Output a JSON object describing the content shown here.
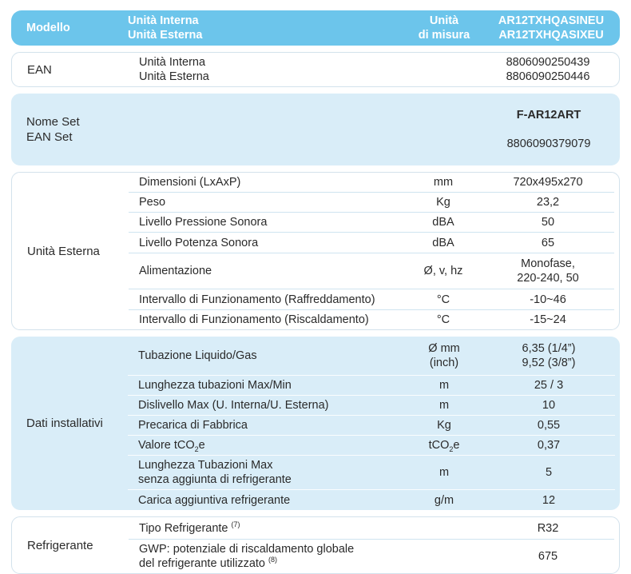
{
  "colors": {
    "header_bg": "#6cc5eb",
    "section_bg": "#d9edf8",
    "header_text": "#ffffff",
    "body_text": "#2a2a2a",
    "divider": "#cfe4f0",
    "box_border": "#d3e2ec"
  },
  "header": {
    "model_label": "Modello",
    "unit_lines": "Unità Interna\nUnità Esterna",
    "measure_lines": "Unità\ndi misura",
    "model_codes": "AR12TXHQASINEU\nAR12TXHQASIXEU"
  },
  "ean": {
    "label": "EAN",
    "param": "Unità Interna\nUnità Esterna",
    "value": "8806090250439\n8806090250446"
  },
  "set": {
    "label": "Nome Set\nEAN Set",
    "name_value": "F-AR12ART",
    "ean_value": "8806090379079"
  },
  "outdoor": {
    "label": "Unità Esterna",
    "rows": [
      {
        "param": "Dimensioni (LxAxP)",
        "unit": "mm",
        "value": "720x495x270"
      },
      {
        "param": "Peso",
        "unit": "Kg",
        "value": "23,2"
      },
      {
        "param": "Livello Pressione Sonora",
        "unit": "dBA",
        "value": "50"
      },
      {
        "param": "Livello Potenza Sonora",
        "unit": "dBA",
        "value": "65"
      },
      {
        "param": "Alimentazione",
        "unit": "Ø, v, hz",
        "value": "Monofase,\n220-240, 50"
      },
      {
        "param": "Intervallo di Funzionamento (Raffreddamento)",
        "unit": "°C",
        "value": "-10~46"
      },
      {
        "param": "Intervallo di Funzionamento (Riscaldamento)",
        "unit": "°C",
        "value": "-15~24"
      }
    ]
  },
  "install": {
    "label": "Dati installativi",
    "rows": [
      {
        "param": "Tubazione Liquido/Gas",
        "unit": "Ø mm\n(inch)",
        "value": "6,35 (1/4”)\n9,52 (3/8”)"
      },
      {
        "param": "Lunghezza tubazioni Max/Min",
        "unit": "m",
        "value": "25 / 3"
      },
      {
        "param": "Dislivello Max (U. Interna/U. Esterna)",
        "unit": "m",
        "value": "10"
      },
      {
        "param": "Precarica di Fabbrica",
        "unit": "Kg",
        "value": "0,55"
      },
      {
        "param_pre": "Valore tCO",
        "param_sub": "2",
        "param_post": "e",
        "unit_pre": "tCO",
        "unit_sub": "2",
        "unit_post": "e",
        "value": "0,37"
      },
      {
        "param": "Lunghezza Tubazioni Max\nsenza aggiunta di refrigerante",
        "unit": "m",
        "value": "5"
      },
      {
        "param": "Carica aggiuntiva refrigerante",
        "unit": "g/m",
        "value": "12"
      }
    ]
  },
  "refrigerant": {
    "label": "Refrigerante",
    "rows": [
      {
        "param": "Tipo Refrigerante",
        "param_sup": "(7)",
        "value": "R32"
      },
      {
        "param_line1": "GWP: potenziale di riscaldamento globale",
        "param_line2": "del refrigerante utilizzato",
        "param_sup": "(8)",
        "value": "675"
      }
    ]
  }
}
